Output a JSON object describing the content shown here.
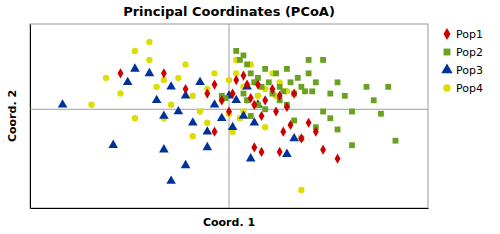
{
  "chart_data": {
    "type": "scatter",
    "title": "Principal Coordinates (PCoA)",
    "xlabel": "Coord. 1",
    "ylabel": "Coord. 2",
    "xlim": [
      -0.55,
      0.55
    ],
    "ylim": [
      -0.44,
      0.38
    ],
    "tick_labels": false,
    "vline": 0.0,
    "hline": 0.0,
    "legend": "right",
    "series": [
      {
        "name": "Pop1",
        "color": "#CC0000",
        "marker": "diamond",
        "x": [
          -0.3,
          -0.18,
          -0.12,
          -0.06,
          -0.04,
          -0.02,
          0.0,
          0.01,
          0.02,
          0.04,
          0.05,
          0.06,
          0.07,
          0.08,
          0.09,
          0.1,
          0.12,
          0.13,
          0.14,
          0.15,
          0.16,
          0.17,
          0.18,
          0.2,
          0.22,
          0.07,
          0.09,
          0.14,
          -0.04,
          0.24,
          0.26,
          0.3
        ],
        "values": [
          0.16,
          0.16,
          0.09,
          0.07,
          0.11,
          0.04,
          -0.01,
          0.07,
          0.13,
          0.15,
          0.11,
          0.05,
          0.02,
          0.11,
          -0.03,
          0.04,
          0.09,
          -0.01,
          0.06,
          -0.1,
          0.01,
          -0.07,
          0.07,
          -0.13,
          -0.06,
          -0.17,
          -0.19,
          -0.19,
          -0.1,
          -0.1,
          -0.18,
          -0.22
        ]
      },
      {
        "name": "Pop2",
        "color": "#6AA121",
        "marker": "square",
        "x": [
          -0.02,
          -0.01,
          0.02,
          0.03,
          0.04,
          0.05,
          0.06,
          0.07,
          0.08,
          0.09,
          0.1,
          0.11,
          0.12,
          0.13,
          0.14,
          0.15,
          0.16,
          0.17,
          0.18,
          0.19,
          0.2,
          0.21,
          0.22,
          0.23,
          0.24,
          0.26,
          0.28,
          0.3,
          0.32,
          0.34,
          0.18,
          0.2,
          0.24,
          0.28,
          0.3,
          0.34,
          0.08,
          0.1,
          0.14,
          0.16,
          0.22,
          0.26,
          0.04,
          0.05,
          0.06,
          0.42,
          0.4,
          0.44,
          0.46,
          0.38
        ],
        "values": [
          0.06,
          0.05,
          0.26,
          0.22,
          0.24,
          0.2,
          0.16,
          0.12,
          0.14,
          0.1,
          0.18,
          0.12,
          0.07,
          0.16,
          0.1,
          0.08,
          0.18,
          0.12,
          0.07,
          0.14,
          0.1,
          0.08,
          0.16,
          0.08,
          0.12,
          -0.01,
          0.07,
          0.12,
          0.06,
          -0.01,
          -0.05,
          -0.13,
          -0.08,
          -0.04,
          -0.09,
          -0.16,
          0.02,
          0.0,
          0.04,
          0.02,
          0.22,
          0.22,
          0.07,
          0.04,
          -0.03,
          -0.02,
          0.04,
          0.1,
          -0.14,
          0.1
        ]
      },
      {
        "name": "Pop3",
        "color": "#003399",
        "marker": "triangle",
        "x": [
          -0.46,
          -0.32,
          -0.28,
          -0.26,
          -0.22,
          -0.2,
          -0.18,
          -0.16,
          -0.14,
          -0.12,
          -0.1,
          -0.08,
          -0.06,
          -0.04,
          -0.02,
          0.0,
          0.01,
          0.02,
          0.04,
          0.05,
          0.06,
          -0.18,
          0.07,
          0.08,
          -0.12,
          -0.16,
          -0.06,
          0.16,
          0.18
        ],
        "values": [
          0.02,
          -0.16,
          0.12,
          0.18,
          0.16,
          0.04,
          -0.03,
          0.1,
          -0.01,
          0.06,
          -0.06,
          0.12,
          -0.1,
          0.02,
          -0.04,
          0.06,
          -0.08,
          0.04,
          -0.03,
          0.1,
          -0.22,
          -0.18,
          -0.06,
          0.02,
          -0.25,
          -0.32,
          -0.17,
          -0.2,
          -0.13
        ]
      },
      {
        "name": "Pop4",
        "color": "#DDDD00",
        "marker": "circle",
        "x": [
          -0.38,
          -0.34,
          -0.3,
          -0.26,
          -0.22,
          -0.2,
          -0.18,
          -0.16,
          -0.14,
          -0.12,
          -0.1,
          -0.08,
          -0.06,
          -0.04,
          -0.02,
          0.0,
          0.02,
          0.04,
          0.05,
          0.06,
          0.07,
          0.08,
          0.1,
          0.12,
          0.13,
          0.14,
          0.16,
          0.0,
          0.01,
          0.03,
          0.04,
          -0.18,
          -0.26,
          -0.1,
          0.2,
          -0.06,
          0.1,
          -0.22,
          0.02
        ],
        "values": [
          0.02,
          0.14,
          0.07,
          -0.04,
          0.22,
          0.1,
          0.13,
          0.02,
          0.14,
          0.2,
          0.06,
          -0.01,
          0.09,
          0.16,
          0.04,
          0.13,
          0.16,
          0.1,
          0.04,
          0.2,
          0.12,
          0.06,
          0.09,
          0.16,
          0.06,
          0.12,
          0.08,
          -0.02,
          -0.1,
          -0.04,
          -0.01,
          -0.04,
          0.26,
          -0.12,
          -0.36,
          -0.06,
          -0.08,
          0.3,
          0.22
        ]
      }
    ]
  }
}
